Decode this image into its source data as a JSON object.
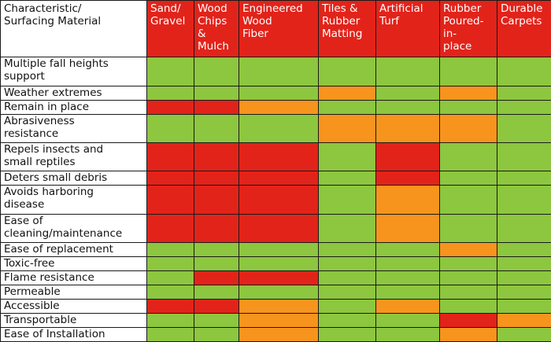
{
  "header": {
    "corner": "Characteristic/\nSurfacing Material",
    "columns": [
      "Sand/\nGravel",
      "Wood\nChips\n&\nMulch",
      "Engineered\nWood\nFiber",
      "Tiles &\nRubber\nMatting",
      "Artificial\nTurf",
      "Rubber\nPoured-\nin-\nplace",
      "Durable\nCarpets"
    ]
  },
  "legend_colors": {
    "green": "#8dc63f",
    "orange": "#f7941d",
    "red": "#e2231a"
  },
  "rows": [
    {
      "label": "Multiple fall heights\nsupport",
      "ratings": [
        "green",
        "green",
        "green",
        "green",
        "green",
        "green",
        "green"
      ]
    },
    {
      "label": "Weather extremes",
      "ratings": [
        "green",
        "green",
        "green",
        "orange",
        "green",
        "orange",
        "green"
      ]
    },
    {
      "label": "Remain in place",
      "ratings": [
        "red",
        "red",
        "orange",
        "green",
        "green",
        "green",
        "green"
      ]
    },
    {
      "label": "Abrasiveness\nresistance",
      "ratings": [
        "green",
        "green",
        "green",
        "orange",
        "orange",
        "orange",
        "green"
      ]
    },
    {
      "label": "Repels insects and\nsmall reptiles",
      "ratings": [
        "red",
        "red",
        "red",
        "green",
        "red",
        "green",
        "green"
      ]
    },
    {
      "label": "Deters small debris",
      "ratings": [
        "red",
        "red",
        "red",
        "green",
        "red",
        "green",
        "green"
      ]
    },
    {
      "label": "Avoids harboring\ndisease",
      "ratings": [
        "red",
        "red",
        "red",
        "green",
        "orange",
        "green",
        "green"
      ]
    },
    {
      "label": "Ease of\ncleaning/maintenance",
      "ratings": [
        "red",
        "red",
        "red",
        "green",
        "orange",
        "green",
        "green"
      ]
    },
    {
      "label": "Ease of replacement",
      "ratings": [
        "green",
        "green",
        "green",
        "green",
        "green",
        "orange",
        "green"
      ]
    },
    {
      "label": "Toxic-free",
      "ratings": [
        "green",
        "green",
        "green",
        "green",
        "green",
        "green",
        "green"
      ]
    },
    {
      "label": "Flame resistance",
      "ratings": [
        "green",
        "red",
        "red",
        "green",
        "green",
        "green",
        "green"
      ]
    },
    {
      "label": "Permeable",
      "ratings": [
        "green",
        "green",
        "green",
        "green",
        "green",
        "green",
        "green"
      ]
    },
    {
      "label": "Accessible",
      "ratings": [
        "red",
        "red",
        "orange",
        "green",
        "orange",
        "green",
        "green"
      ]
    },
    {
      "label": "Transportable",
      "ratings": [
        "green",
        "green",
        "orange",
        "green",
        "green",
        "red",
        "orange"
      ]
    },
    {
      "label": "Ease of Installation",
      "ratings": [
        "green",
        "green",
        "orange",
        "green",
        "green",
        "orange",
        "green"
      ]
    }
  ]
}
